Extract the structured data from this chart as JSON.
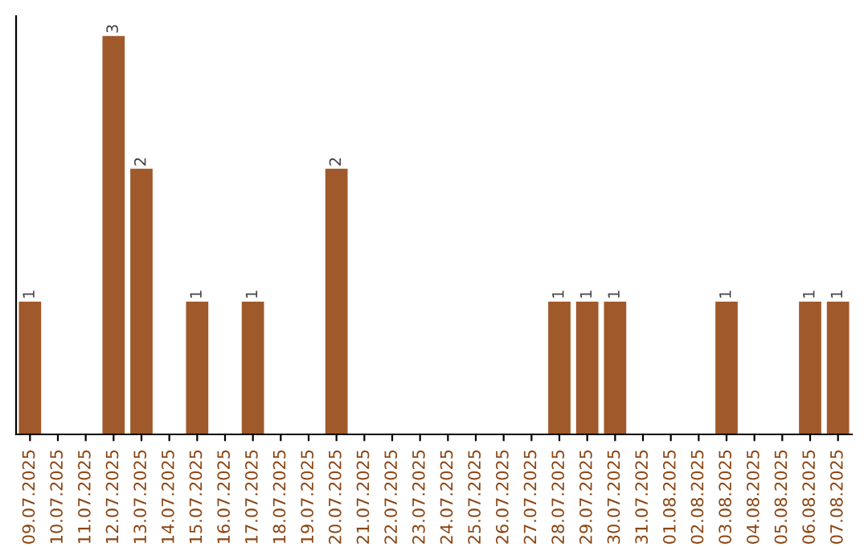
{
  "chart_data": {
    "type": "bar",
    "categories": [
      "09.07.2025",
      "10.07.2025",
      "11.07.2025",
      "12.07.2025",
      "13.07.2025",
      "14.07.2025",
      "15.07.2025",
      "16.07.2025",
      "17.07.2025",
      "18.07.2025",
      "19.07.2025",
      "20.07.2025",
      "21.07.2025",
      "22.07.2025",
      "23.07.2025",
      "24.07.2025",
      "25.07.2025",
      "26.07.2025",
      "27.07.2025",
      "28.07.2025",
      "29.07.2025",
      "30.07.2025",
      "31.07.2025",
      "01.08.2025",
      "02.08.2025",
      "03.08.2025",
      "04.08.2025",
      "05.08.2025",
      "06.08.2025",
      "07.08.2025"
    ],
    "values": [
      1,
      0,
      0,
      3,
      2,
      0,
      1,
      0,
      1,
      0,
      0,
      2,
      0,
      0,
      0,
      0,
      0,
      0,
      0,
      1,
      1,
      1,
      0,
      0,
      0,
      1,
      0,
      0,
      1,
      1
    ],
    "value_labels": [
      "1",
      null,
      null,
      "3",
      "2",
      null,
      "1",
      null,
      "1",
      null,
      null,
      "2",
      null,
      null,
      null,
      null,
      null,
      null,
      null,
      "1",
      "1",
      "1",
      null,
      null,
      null,
      "1",
      null,
      null,
      "1",
      "1"
    ],
    "color": "#a0592a",
    "grid": false,
    "legend": false,
    "tick_labels": "x"
  }
}
